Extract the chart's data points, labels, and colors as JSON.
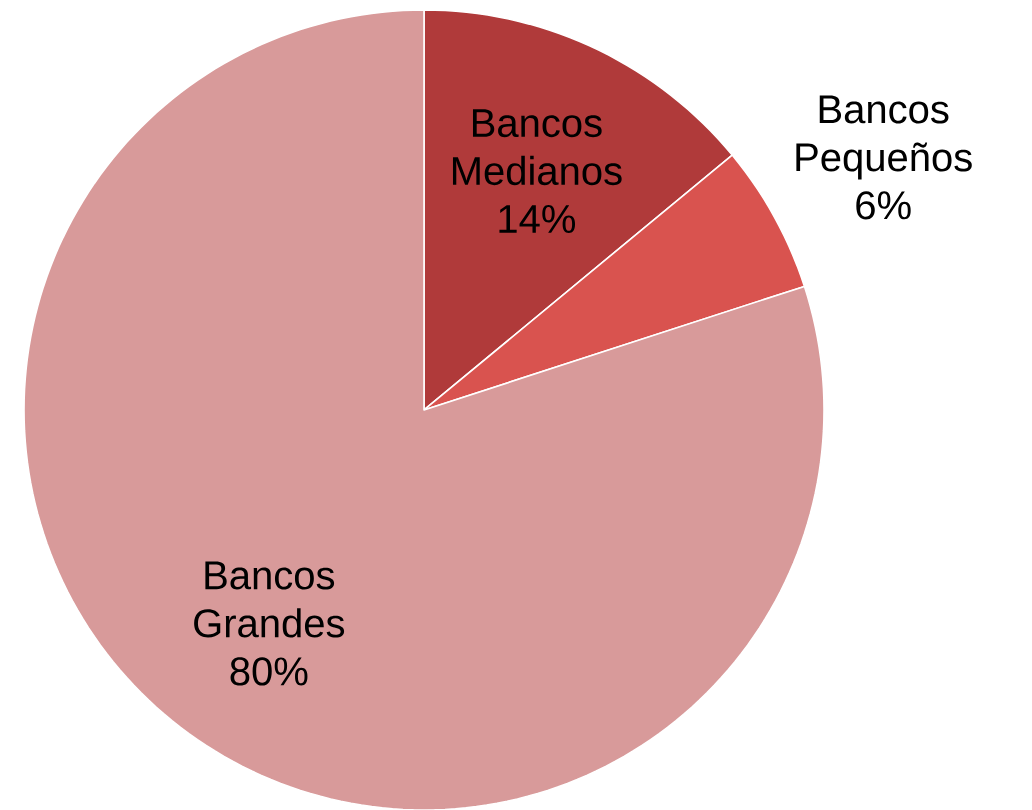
{
  "chart_data": {
    "type": "pie",
    "categories": [
      "Bancos Medianos",
      "Bancos Pequeños",
      "Bancos Grandes"
    ],
    "values": [
      14,
      6,
      80
    ],
    "value_labels": [
      "14%",
      "6%",
      "80%"
    ],
    "colors": [
      "#b03a3a",
      "#d9534f",
      "#d89a9a"
    ]
  }
}
